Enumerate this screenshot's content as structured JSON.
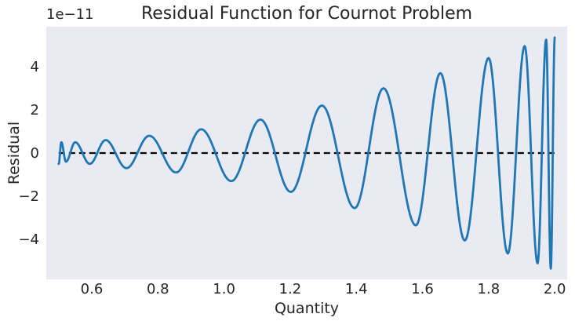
{
  "chart_data": {
    "type": "line",
    "title": "Residual Function for Cournot Problem",
    "xlabel": "Quantity",
    "ylabel": "Residual",
    "x_range": [
      0.5,
      2.0
    ],
    "xlim": [
      0.4625,
      2.0375
    ],
    "ylim": [
      -5.85e-11,
      5.85e-11
    ],
    "xticks": [
      {
        "value": 0.6,
        "label": "0.6"
      },
      {
        "value": 0.8,
        "label": "0.8"
      },
      {
        "value": 1.0,
        "label": "1.0"
      },
      {
        "value": 1.2,
        "label": "1.2"
      },
      {
        "value": 1.4,
        "label": "1.4"
      },
      {
        "value": 1.6,
        "label": "1.6"
      },
      {
        "value": 1.8,
        "label": "1.8"
      },
      {
        "value": 2.0,
        "label": "2.0"
      }
    ],
    "yticks": [
      {
        "value": -4e-11,
        "label": "−4"
      },
      {
        "value": -2e-11,
        "label": "−2"
      },
      {
        "value": 0,
        "label": "0"
      },
      {
        "value": 2e-11,
        "label": "2"
      },
      {
        "value": 4e-11,
        "label": "4"
      }
    ],
    "y_offset_label": "1e−11",
    "grid": false,
    "series": [
      {
        "style": "solid",
        "color": "#1f77b4",
        "extrema": [
          {
            "x": 0.5,
            "y": -5e-12
          },
          {
            "x": 0.508,
            "y": 5e-12
          },
          {
            "x": 0.522,
            "y": -4e-12
          },
          {
            "x": 0.55,
            "y": 5e-12
          },
          {
            "x": 0.594,
            "y": -5e-12
          },
          {
            "x": 0.642,
            "y": 6e-12
          },
          {
            "x": 0.705,
            "y": -7e-12
          },
          {
            "x": 0.774,
            "y": 8e-12
          },
          {
            "x": 0.855,
            "y": -9e-12
          },
          {
            "x": 0.931,
            "y": 1.1e-11
          },
          {
            "x": 1.022,
            "y": -1.3e-11
          },
          {
            "x": 1.11,
            "y": 1.55e-11
          },
          {
            "x": 1.202,
            "y": -1.8e-11
          },
          {
            "x": 1.296,
            "y": 2.2e-11
          },
          {
            "x": 1.395,
            "y": -2.55e-11
          },
          {
            "x": 1.482,
            "y": 3e-11
          },
          {
            "x": 1.58,
            "y": -3.35e-11
          },
          {
            "x": 1.654,
            "y": 3.7e-11
          },
          {
            "x": 1.728,
            "y": -4.05e-11
          },
          {
            "x": 1.8,
            "y": 4.4e-11
          },
          {
            "x": 1.858,
            "y": -4.65e-11
          },
          {
            "x": 1.909,
            "y": 4.95e-11
          },
          {
            "x": 1.948,
            "y": -5.1e-11
          },
          {
            "x": 1.974,
            "y": 5.25e-11
          },
          {
            "x": 1.988,
            "y": -5.35e-11
          },
          {
            "x": 2.0,
            "y": 5.35e-11
          }
        ]
      },
      {
        "style": "dashed",
        "color": "#000000",
        "x": [
          0.5,
          2.0
        ],
        "y": [
          0,
          0
        ]
      }
    ],
    "colors": {
      "plot_background": "#eaeaf2",
      "residual_line": "#1f77b4",
      "zero_line": "#000000",
      "text": "#262626"
    }
  }
}
